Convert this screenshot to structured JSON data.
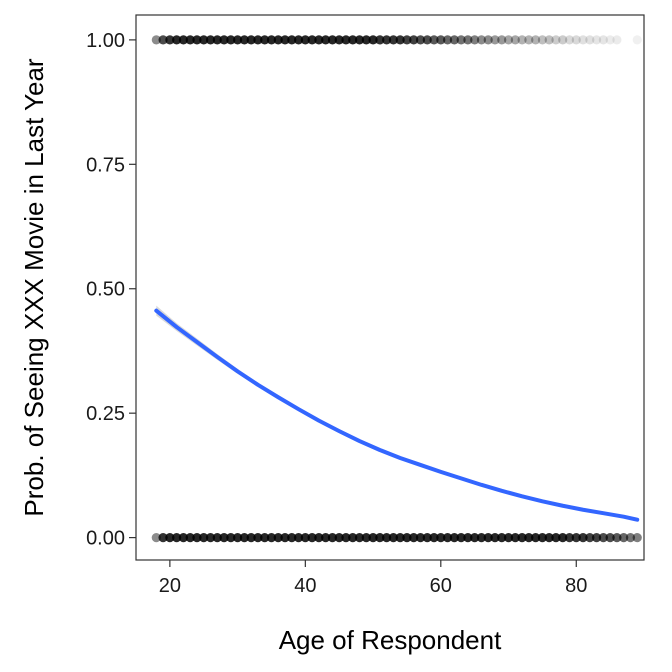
{
  "chart_data": {
    "type": "scatter",
    "title": "",
    "xlabel": "Age of Respondent",
    "ylabel": "Prob. of Seeing XXX Movie in Last Year",
    "xlim": [
      15,
      90
    ],
    "ylim": [
      -0.045,
      1.05
    ],
    "x_ticks": [
      20,
      40,
      60,
      80
    ],
    "x_tick_labels": [
      "20",
      "40",
      "60",
      "80"
    ],
    "y_ticks": [
      0,
      0.25,
      0.5,
      0.75,
      1.0
    ],
    "y_tick_labels": [
      "0.00",
      "0.25",
      "0.50",
      "0.75",
      "1.00"
    ],
    "grid": false,
    "legend": "none",
    "point_color": "#000000",
    "line_color": "#3366ff",
    "band_color": "#aaaaaa",
    "series": [
      {
        "kind": "points",
        "y": 1,
        "x": [
          18,
          19,
          20,
          21,
          22,
          23,
          24,
          25,
          26,
          27,
          28,
          29,
          30,
          31,
          32,
          33,
          34,
          35,
          36,
          37,
          38,
          39,
          40,
          41,
          42,
          43,
          44,
          45,
          46,
          47,
          48,
          49,
          50,
          51,
          52,
          53,
          54,
          55,
          56,
          57,
          58,
          59,
          60,
          61,
          62,
          63,
          64,
          65,
          66,
          67,
          68,
          69,
          70,
          71,
          72,
          73,
          74,
          75,
          76,
          77,
          78,
          79,
          80,
          81,
          82,
          83,
          84,
          85,
          86,
          89
        ],
        "opacity": [
          0.45,
          0.7,
          0.8,
          0.85,
          0.85,
          0.85,
          0.85,
          0.85,
          0.85,
          0.85,
          0.85,
          0.85,
          0.85,
          0.85,
          0.85,
          0.85,
          0.85,
          0.85,
          0.85,
          0.85,
          0.85,
          0.85,
          0.85,
          0.85,
          0.85,
          0.85,
          0.85,
          0.85,
          0.85,
          0.85,
          0.85,
          0.85,
          0.85,
          0.8,
          0.8,
          0.8,
          0.8,
          0.75,
          0.75,
          0.7,
          0.7,
          0.65,
          0.65,
          0.6,
          0.6,
          0.55,
          0.55,
          0.5,
          0.45,
          0.45,
          0.4,
          0.4,
          0.35,
          0.35,
          0.3,
          0.3,
          0.3,
          0.25,
          0.25,
          0.2,
          0.2,
          0.15,
          0.15,
          0.12,
          0.12,
          0.1,
          0.1,
          0.08,
          0.08,
          0.06
        ]
      },
      {
        "kind": "points",
        "y": 0,
        "x": [
          18,
          19,
          20,
          21,
          22,
          23,
          24,
          25,
          26,
          27,
          28,
          29,
          30,
          31,
          32,
          33,
          34,
          35,
          36,
          37,
          38,
          39,
          40,
          41,
          42,
          43,
          44,
          45,
          46,
          47,
          48,
          49,
          50,
          51,
          52,
          53,
          54,
          55,
          56,
          57,
          58,
          59,
          60,
          61,
          62,
          63,
          64,
          65,
          66,
          67,
          68,
          69,
          70,
          71,
          72,
          73,
          74,
          75,
          76,
          77,
          78,
          79,
          80,
          81,
          82,
          83,
          84,
          85,
          86,
          87,
          88,
          89
        ],
        "opacity": [
          0.45,
          0.8,
          0.85,
          0.85,
          0.85,
          0.85,
          0.85,
          0.85,
          0.85,
          0.85,
          0.85,
          0.85,
          0.85,
          0.85,
          0.85,
          0.85,
          0.85,
          0.85,
          0.85,
          0.85,
          0.85,
          0.85,
          0.85,
          0.85,
          0.85,
          0.85,
          0.85,
          0.85,
          0.85,
          0.85,
          0.85,
          0.85,
          0.85,
          0.85,
          0.85,
          0.85,
          0.85,
          0.85,
          0.85,
          0.85,
          0.85,
          0.85,
          0.85,
          0.85,
          0.85,
          0.85,
          0.85,
          0.85,
          0.85,
          0.85,
          0.85,
          0.85,
          0.85,
          0.85,
          0.85,
          0.85,
          0.85,
          0.85,
          0.85,
          0.85,
          0.85,
          0.8,
          0.8,
          0.8,
          0.75,
          0.75,
          0.7,
          0.7,
          0.65,
          0.6,
          0.55,
          0.5
        ]
      },
      {
        "kind": "fit",
        "x": [
          18,
          21,
          24,
          27,
          30,
          33,
          36,
          39,
          42,
          45,
          48,
          51,
          54,
          57,
          60,
          63,
          66,
          69,
          72,
          75,
          78,
          81,
          84,
          87,
          89
        ],
        "y": [
          0.456,
          0.423,
          0.393,
          0.363,
          0.334,
          0.307,
          0.282,
          0.258,
          0.235,
          0.214,
          0.194,
          0.176,
          0.16,
          0.146,
          0.132,
          0.119,
          0.106,
          0.094,
          0.083,
          0.073,
          0.064,
          0.056,
          0.049,
          0.042,
          0.036
        ],
        "lower": [
          0.446,
          0.415,
          0.386,
          0.357,
          0.329,
          0.303,
          0.278,
          0.255,
          0.232,
          0.211,
          0.192,
          0.174,
          0.158,
          0.144,
          0.13,
          0.117,
          0.104,
          0.092,
          0.081,
          0.071,
          0.062,
          0.054,
          0.047,
          0.04,
          0.034
        ],
        "upper": [
          0.466,
          0.431,
          0.4,
          0.369,
          0.339,
          0.311,
          0.286,
          0.261,
          0.238,
          0.217,
          0.196,
          0.178,
          0.162,
          0.148,
          0.134,
          0.121,
          0.108,
          0.096,
          0.085,
          0.075,
          0.066,
          0.058,
          0.051,
          0.044,
          0.038
        ]
      }
    ]
  }
}
